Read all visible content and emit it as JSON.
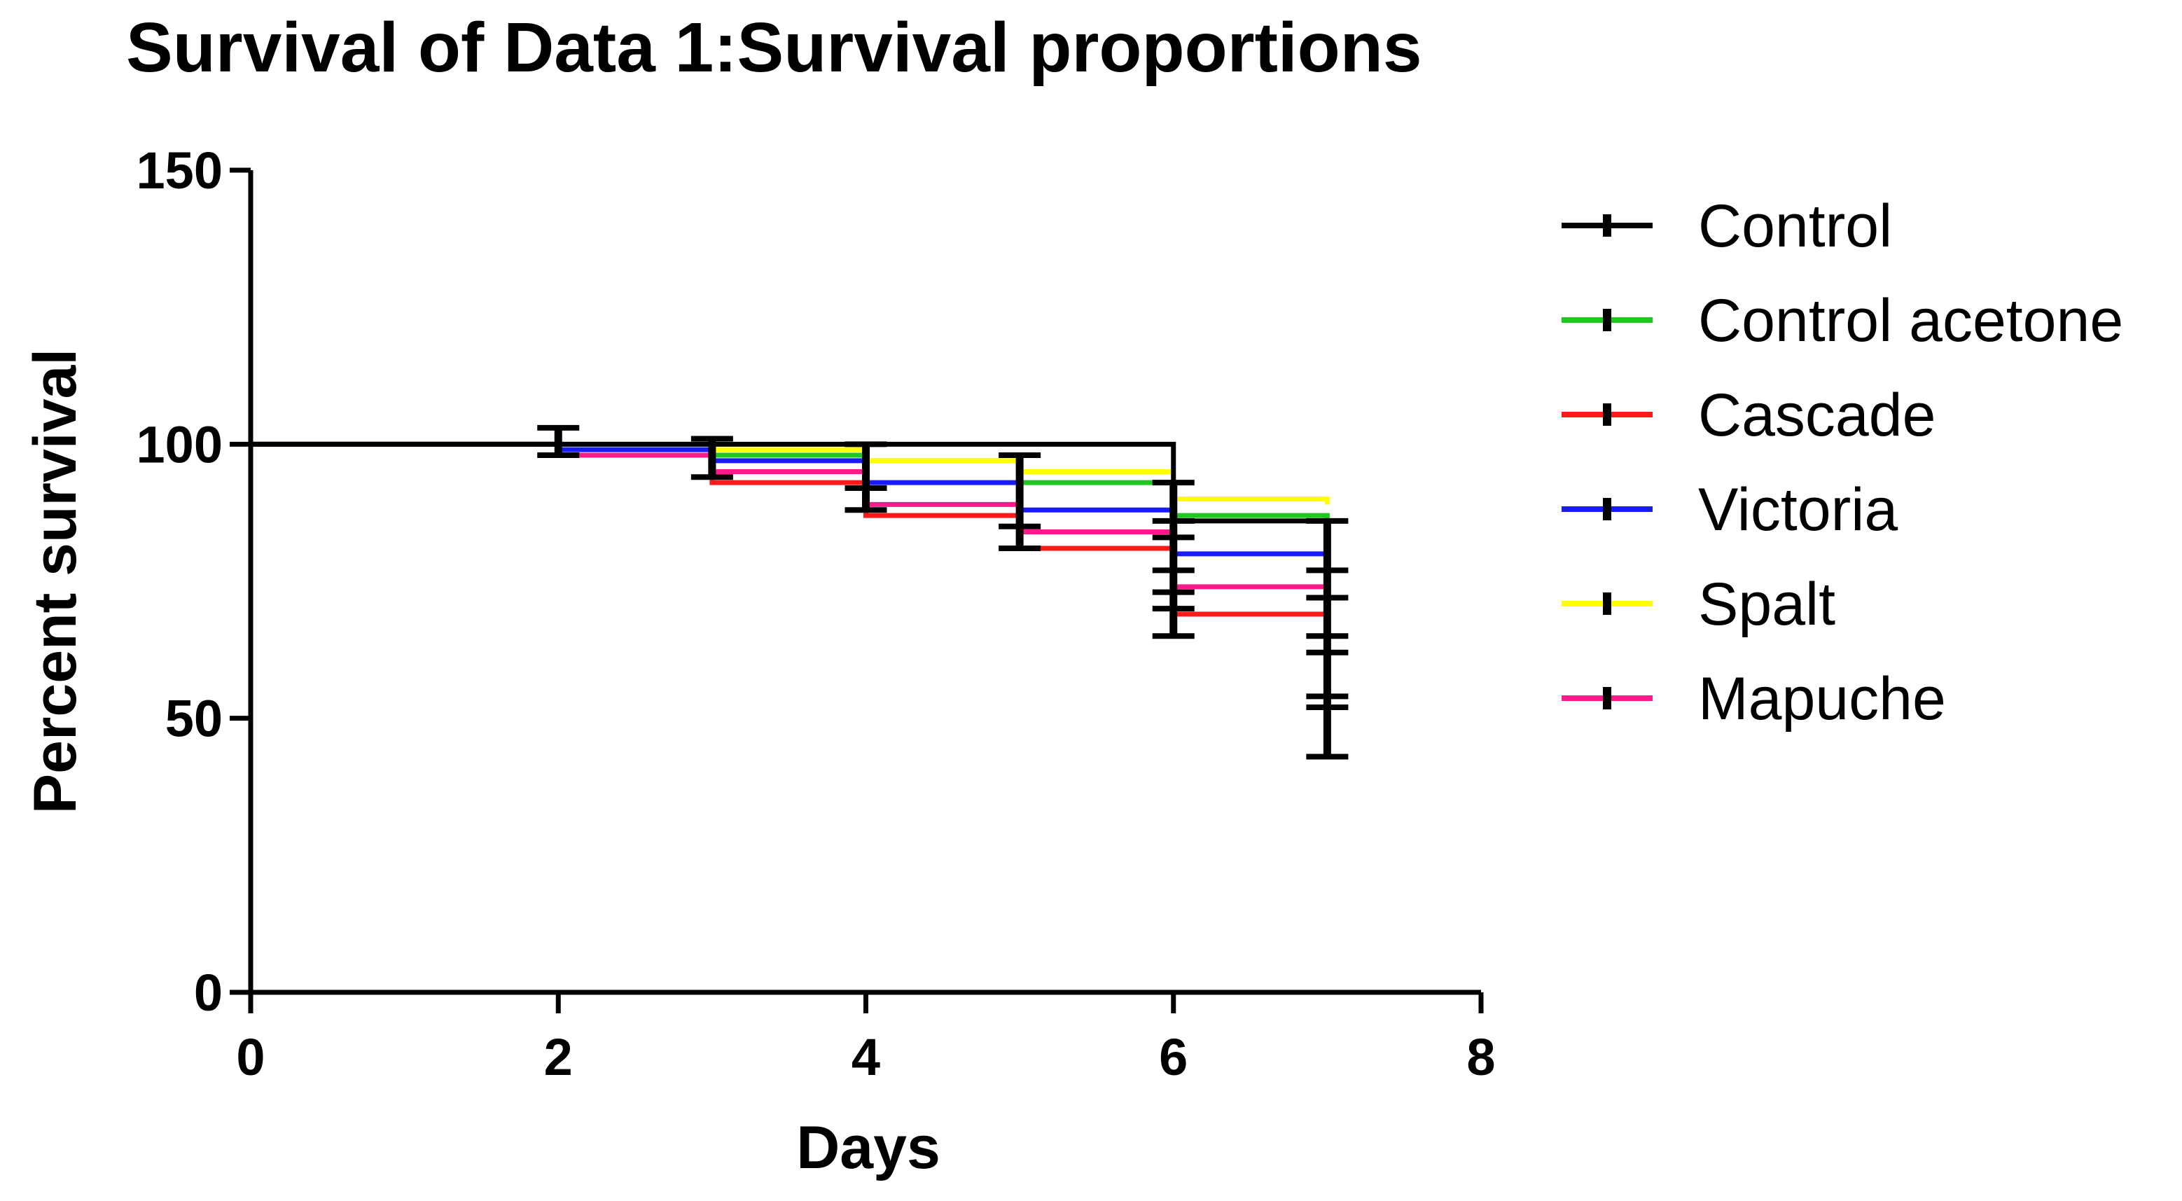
{
  "chart_data": {
    "type": "line",
    "subtype": "kaplan-meier step survival curves",
    "title": "Survival of Data 1:Survival proportions",
    "xlabel": "Days",
    "ylabel": "Percent survival",
    "xlim": [
      0,
      8
    ],
    "ylim": [
      0,
      150
    ],
    "x_ticks": [
      0,
      2,
      4,
      6,
      8
    ],
    "y_ticks": [
      0,
      50,
      100,
      150
    ],
    "grid": false,
    "legend_position": "right",
    "series": [
      {
        "name": "Control",
        "color": "#000000",
        "steps": [
          [
            0,
            100
          ],
          [
            2,
            100
          ],
          [
            3,
            100
          ],
          [
            4,
            100
          ],
          [
            5,
            100
          ],
          [
            6,
            86
          ],
          [
            7,
            86
          ]
        ]
      },
      {
        "name": "Control acetone",
        "color": "#1ec81e",
        "steps": [
          [
            0,
            100
          ],
          [
            2,
            100
          ],
          [
            3,
            98
          ],
          [
            4,
            97
          ],
          [
            5,
            93
          ],
          [
            6,
            87
          ],
          [
            7,
            86
          ]
        ]
      },
      {
        "name": "Cascade",
        "color": "#ff1a1a",
        "steps": [
          [
            0,
            100
          ],
          [
            2,
            98
          ],
          [
            3,
            93
          ],
          [
            4,
            87
          ],
          [
            5,
            81
          ],
          [
            6,
            69
          ],
          [
            7,
            69
          ]
        ]
      },
      {
        "name": "Victoria",
        "color": "#1a1aff",
        "steps": [
          [
            0,
            100
          ],
          [
            2,
            99
          ],
          [
            3,
            97
          ],
          [
            4,
            93
          ],
          [
            5,
            88
          ],
          [
            6,
            80
          ],
          [
            7,
            80
          ]
        ]
      },
      {
        "name": "Spalt",
        "color": "#ffff00",
        "steps": [
          [
            0,
            100
          ],
          [
            2,
            100
          ],
          [
            3,
            99
          ],
          [
            4,
            97
          ],
          [
            5,
            95
          ],
          [
            6,
            90
          ],
          [
            7,
            89
          ]
        ]
      },
      {
        "name": "Mapuche",
        "color": "#ff1a8c",
        "steps": [
          [
            0,
            100
          ],
          [
            2,
            98
          ],
          [
            3,
            95
          ],
          [
            4,
            89
          ],
          [
            5,
            84
          ],
          [
            6,
            74
          ],
          [
            7,
            74
          ]
        ]
      }
    ],
    "error_bars": [
      {
        "x": 2,
        "low": 98,
        "high": 103
      },
      {
        "x": 3,
        "low": 94,
        "high": 101
      },
      {
        "x": 4,
        "low": 88,
        "high": 100
      },
      {
        "x": 5,
        "low": 81,
        "high": 98
      },
      {
        "x": 6,
        "low": 65,
        "high": 93
      },
      {
        "x": 7,
        "low": 43,
        "high": 86
      }
    ],
    "error_bar_caps": [
      {
        "x": 2,
        "values": [
          98,
          103
        ]
      },
      {
        "x": 3,
        "values": [
          94,
          101
        ]
      },
      {
        "x": 4,
        "values": [
          88,
          92,
          100
        ]
      },
      {
        "x": 5,
        "values": [
          81,
          85,
          98
        ]
      },
      {
        "x": 6,
        "values": [
          65,
          70,
          73,
          77,
          83,
          86,
          93
        ]
      },
      {
        "x": 7,
        "values": [
          43,
          52,
          54,
          62,
          65,
          72,
          77,
          86
        ]
      }
    ]
  }
}
